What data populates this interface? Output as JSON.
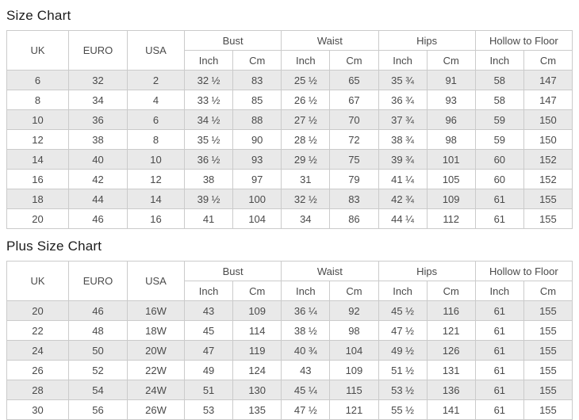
{
  "colors": {
    "stripe_row_background": "#e9e9e9",
    "table_border": "#cbcbcb",
    "cell_text": "#4a4a4a",
    "title_text": "#1c1c1c"
  },
  "tables": [
    {
      "title": "Size Chart",
      "columns": {
        "simple": [
          "UK",
          "EURO",
          "USA"
        ],
        "groups": [
          {
            "label": "Bust",
            "subs": [
              "Inch",
              "Cm"
            ]
          },
          {
            "label": "Waist",
            "subs": [
              "Inch",
              "Cm"
            ]
          },
          {
            "label": "Hips",
            "subs": [
              "Inch",
              "Cm"
            ]
          },
          {
            "label": "Hollow to Floor",
            "subs": [
              "Inch",
              "Cm"
            ]
          }
        ]
      },
      "rows": [
        [
          "6",
          "32",
          "2",
          "32 ½",
          "83",
          "25 ½",
          "65",
          "35 ¾",
          "91",
          "58",
          "147"
        ],
        [
          "8",
          "34",
          "4",
          "33 ½",
          "85",
          "26 ½",
          "67",
          "36 ¾",
          "93",
          "58",
          "147"
        ],
        [
          "10",
          "36",
          "6",
          "34 ½",
          "88",
          "27 ½",
          "70",
          "37 ¾",
          "96",
          "59",
          "150"
        ],
        [
          "12",
          "38",
          "8",
          "35 ½",
          "90",
          "28 ½",
          "72",
          "38 ¾",
          "98",
          "59",
          "150"
        ],
        [
          "14",
          "40",
          "10",
          "36 ½",
          "93",
          "29 ½",
          "75",
          "39 ¾",
          "101",
          "60",
          "152"
        ],
        [
          "16",
          "42",
          "12",
          "38",
          "97",
          "31",
          "79",
          "41 ¼",
          "105",
          "60",
          "152"
        ],
        [
          "18",
          "44",
          "14",
          "39 ½",
          "100",
          "32 ½",
          "83",
          "42 ¾",
          "109",
          "61",
          "155"
        ],
        [
          "20",
          "46",
          "16",
          "41",
          "104",
          "34",
          "86",
          "44 ¼",
          "112",
          "61",
          "155"
        ]
      ]
    },
    {
      "title": "Plus Size Chart",
      "columns": {
        "simple": [
          "UK",
          "EURO",
          "USA"
        ],
        "groups": [
          {
            "label": "Bust",
            "subs": [
              "Inch",
              "Cm"
            ]
          },
          {
            "label": "Waist",
            "subs": [
              "Inch",
              "Cm"
            ]
          },
          {
            "label": "Hips",
            "subs": [
              "Inch",
              "Cm"
            ]
          },
          {
            "label": "Hollow to Floor",
            "subs": [
              "Inch",
              "Cm"
            ]
          }
        ]
      },
      "rows": [
        [
          "20",
          "46",
          "16W",
          "43",
          "109",
          "36 ¼",
          "92",
          "45 ½",
          "116",
          "61",
          "155"
        ],
        [
          "22",
          "48",
          "18W",
          "45",
          "114",
          "38 ½",
          "98",
          "47 ½",
          "121",
          "61",
          "155"
        ],
        [
          "24",
          "50",
          "20W",
          "47",
          "119",
          "40 ¾",
          "104",
          "49 ½",
          "126",
          "61",
          "155"
        ],
        [
          "26",
          "52",
          "22W",
          "49",
          "124",
          "43",
          "109",
          "51 ½",
          "131",
          "61",
          "155"
        ],
        [
          "28",
          "54",
          "24W",
          "51",
          "130",
          "45 ¼",
          "115",
          "53 ½",
          "136",
          "61",
          "155"
        ],
        [
          "30",
          "56",
          "26W",
          "53",
          "135",
          "47 ½",
          "121",
          "55 ½",
          "141",
          "61",
          "155"
        ]
      ]
    }
  ]
}
